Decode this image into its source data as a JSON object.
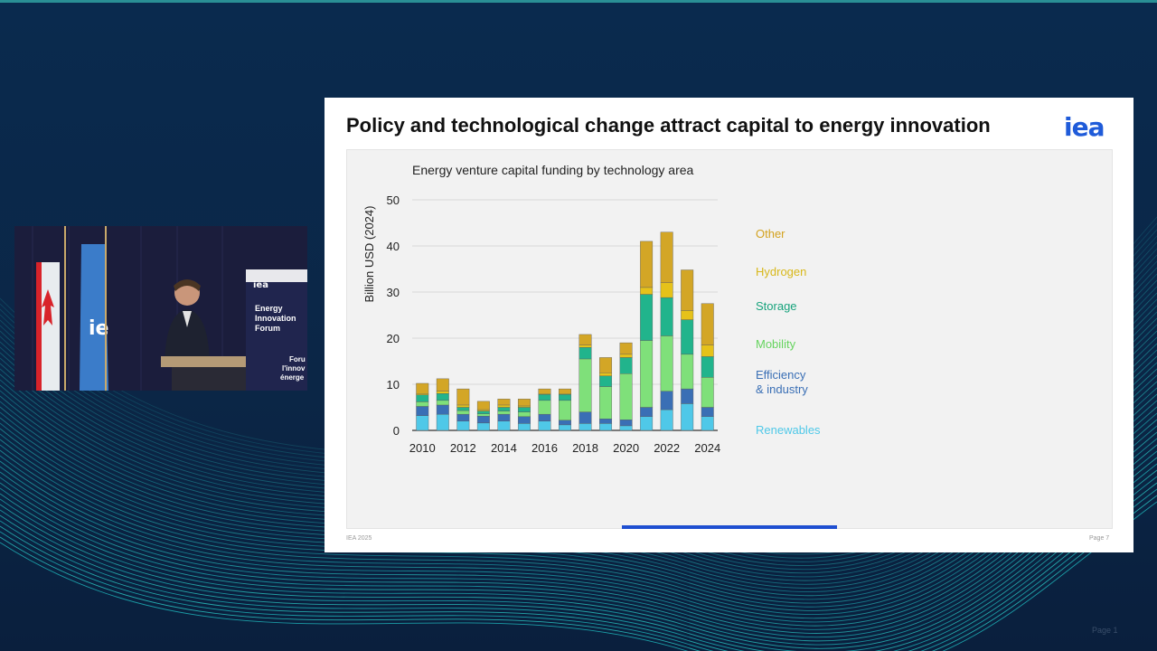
{
  "slide": {
    "title": "Policy and technological change attract capital to energy innovation",
    "logo": "iea",
    "footer_left": "IEA 2025",
    "footer_right": "Page 7",
    "progress": 0.35
  },
  "webcam": {
    "banner_logo": "iea",
    "banner_text": [
      "Energy",
      "Innovation",
      "Forum"
    ],
    "banner_text_fr": [
      "Foru",
      "l'innov",
      "énerge"
    ]
  },
  "page_corner": "Page 1",
  "colors": {
    "renewables": "#4fc8e8",
    "efficiency": "#3a6fb5",
    "mobility": "#7fe07a",
    "storage": "#21b48c",
    "hydrogen": "#e6c21a",
    "other": "#d3a626"
  },
  "chart_data": {
    "type": "bar",
    "stacked": true,
    "title": "Energy venture capital funding by technology area",
    "ylabel": "Billion USD (2024)",
    "xlabel": "",
    "ylim": [
      0,
      50
    ],
    "yticks": [
      0,
      10,
      20,
      30,
      40,
      50
    ],
    "grid": true,
    "legend": "right",
    "categories": [
      "2010",
      "2011",
      "2012",
      "2013",
      "2014",
      "2015",
      "2016",
      "2017",
      "2018",
      "2019",
      "2020",
      "2021",
      "2022",
      "2023",
      "2024"
    ],
    "xtick_labels": [
      "2010",
      "2012",
      "2014",
      "2016",
      "2018",
      "2020",
      "2022",
      "2024"
    ],
    "series": [
      {
        "name": "Renewables",
        "values": [
          3.2,
          3.5,
          2.0,
          1.6,
          2.0,
          1.5,
          2.0,
          1.2,
          1.5,
          1.5,
          1.0,
          3.0,
          4.5,
          5.8,
          3.0
        ]
      },
      {
        "name": "Efficiency & industry",
        "values": [
          2.0,
          2.0,
          1.5,
          1.5,
          1.5,
          1.5,
          1.5,
          1.0,
          2.5,
          1.0,
          1.3,
          2.0,
          4.0,
          3.2,
          2.0
        ]
      },
      {
        "name": "Mobility",
        "values": [
          1.0,
          1.0,
          0.8,
          0.5,
          0.7,
          1.0,
          3.0,
          4.3,
          11.5,
          7.0,
          10.0,
          14.5,
          12.0,
          7.5,
          6.5
        ]
      },
      {
        "name": "Storage",
        "values": [
          1.5,
          1.5,
          0.7,
          0.6,
          0.8,
          1.0,
          1.3,
          1.3,
          2.5,
          2.3,
          3.5,
          10.0,
          8.3,
          7.5,
          4.5
        ]
      },
      {
        "name": "Hydrogen",
        "values": [
          0.3,
          0.5,
          0.5,
          0.3,
          0.5,
          0.3,
          0.2,
          0.2,
          0.5,
          0.7,
          0.7,
          1.5,
          3.2,
          2.0,
          2.5
        ]
      },
      {
        "name": "Other",
        "values": [
          2.2,
          2.7,
          3.5,
          1.8,
          1.3,
          1.5,
          1.0,
          1.0,
          2.3,
          3.3,
          2.5,
          10.0,
          11.0,
          8.8,
          9.0
        ]
      }
    ]
  }
}
